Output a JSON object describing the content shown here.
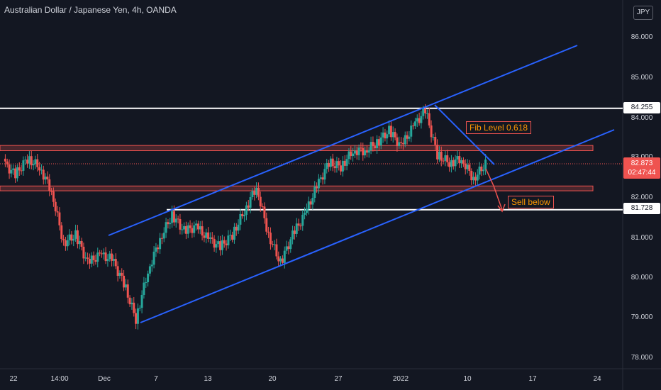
{
  "header": {
    "title": "Australian Dollar / Japanese Yen, 4h, OANDA",
    "currency": "JPY"
  },
  "colors": {
    "up": "#26a69a",
    "down": "#ef5350",
    "channel": "#2962ff",
    "level": "#ffffff",
    "zone": "#ef5350",
    "annotation": "#ff9800"
  },
  "chart_data": {
    "type": "candlestick",
    "ylim": [
      77.8,
      86.5
    ],
    "y_ticks": [
      "86.000",
      "85.000",
      "84.000",
      "83.000",
      "82.000",
      "81.000",
      "80.000",
      "79.000",
      "78.000"
    ],
    "x_ticks": [
      "22",
      "14:00",
      "Dec",
      "7",
      "13",
      "20",
      "27",
      "2022",
      "10",
      "17",
      "24"
    ],
    "horizontal_levels": [
      {
        "label": "84.255",
        "value": 84.255
      },
      {
        "label": "81.728",
        "value": 81.728
      }
    ],
    "current": {
      "price": "82.873",
      "countdown": "02:47:44",
      "value": 82.873
    },
    "zones": [
      {
        "from": 83.2,
        "to": 83.33
      },
      {
        "from": 82.2,
        "to": 82.32
      }
    ],
    "annotations": [
      {
        "text": "Fib Level 0.618"
      },
      {
        "text": "Sell below"
      }
    ],
    "close_path": [
      [
        "Nov 22",
        82.9
      ],
      [
        "Nov 23",
        82.6
      ],
      [
        "Nov 24",
        83.0
      ],
      [
        "Nov 25",
        82.8
      ],
      [
        "Nov 26",
        82.2
      ],
      [
        "Nov 27",
        80.9
      ],
      [
        "Nov 29",
        81.1
      ],
      [
        "Nov 30",
        80.4
      ],
      [
        "Dec 1",
        80.6
      ],
      [
        "Dec 2",
        80.5
      ],
      [
        "Dec 3",
        79.9
      ],
      [
        "Dec 3 PM",
        79.0
      ],
      [
        "Dec 6",
        80.2
      ],
      [
        "Dec 7",
        81.0
      ],
      [
        "Dec 8",
        81.6
      ],
      [
        "Dec 9",
        81.2
      ],
      [
        "Dec 10",
        81.3
      ],
      [
        "Dec 13",
        81.0
      ],
      [
        "Dec 14",
        80.8
      ],
      [
        "Dec 15",
        81.1
      ],
      [
        "Dec 16",
        81.7
      ],
      [
        "Dec 16 PM",
        82.3
      ],
      [
        "Dec 17",
        81.1
      ],
      [
        "Dec 20",
        80.4
      ],
      [
        "Dec 21",
        81.1
      ],
      [
        "Dec 22",
        81.6
      ],
      [
        "Dec 23",
        82.3
      ],
      [
        "Dec 24",
        82.9
      ],
      [
        "Dec 27",
        82.8
      ],
      [
        "Dec 28",
        83.2
      ],
      [
        "Dec 29",
        83.2
      ],
      [
        "Dec 30",
        83.4
      ],
      [
        "Dec 31",
        83.7
      ],
      [
        "Jan 3",
        83.3
      ],
      [
        "Jan 4",
        83.8
      ],
      [
        "Jan 5",
        84.2
      ],
      [
        "Jan 6",
        83.1
      ],
      [
        "Jan 7",
        82.9
      ],
      [
        "Jan 10",
        83.0
      ],
      [
        "Jan 11",
        82.5
      ],
      [
        "Jan 12",
        82.87
      ]
    ]
  }
}
